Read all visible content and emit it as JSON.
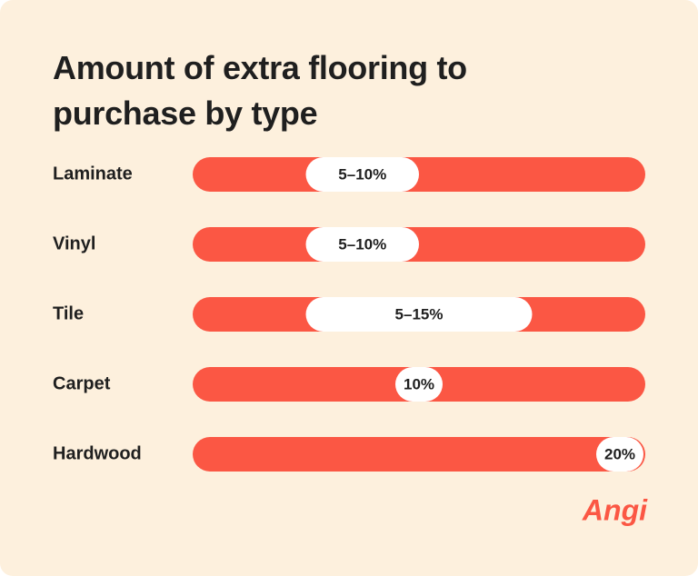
{
  "chart_data": {
    "type": "range-bar",
    "title": "Amount of extra flooring to purchase by type",
    "categories": [
      "Laminate",
      "Vinyl",
      "Tile",
      "Carpet",
      "Hardwood"
    ],
    "low": [
      5,
      5,
      5,
      10,
      20
    ],
    "high": [
      10,
      10,
      15,
      10,
      20
    ],
    "value_labels": [
      "5–10%",
      "5–10%",
      "5–15%",
      "10%",
      "20%"
    ],
    "xlim": [
      0,
      20
    ],
    "track_color": "#fb5744",
    "range_color": "#ffffff",
    "background": "#fdf0dd"
  },
  "brand": "Angi"
}
